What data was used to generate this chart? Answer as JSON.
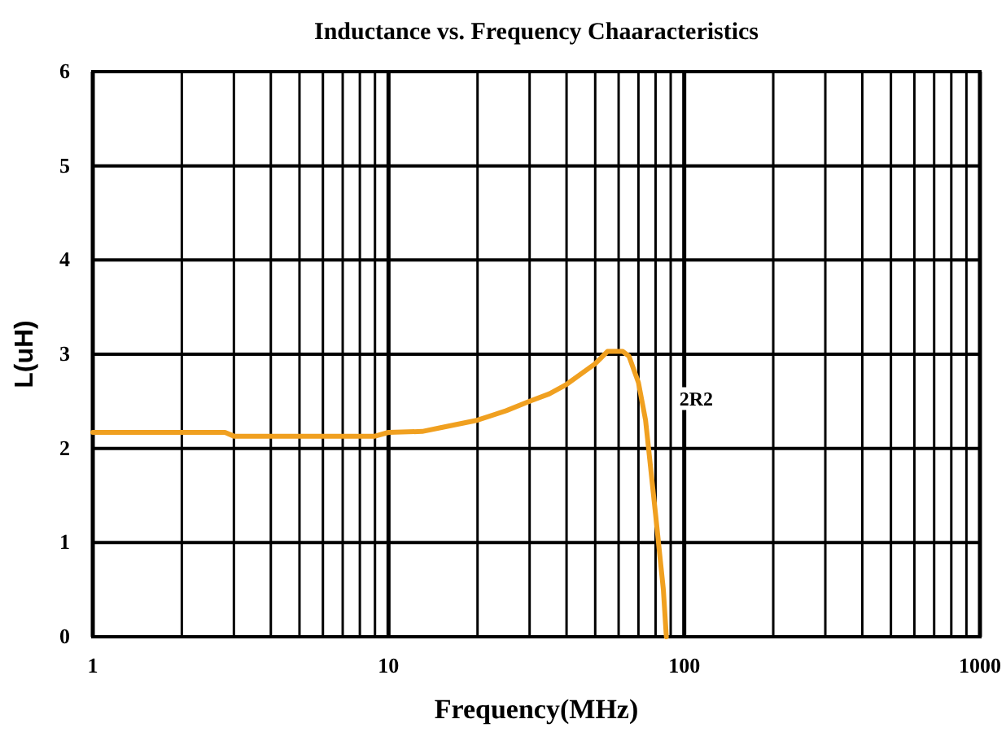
{
  "chart_data": {
    "type": "line",
    "title": "Inductance vs. Frequency Chaaracteristics",
    "xlabel": "Frequency(MHz)",
    "ylabel": "L(uH)",
    "log": "x",
    "grid": true,
    "xlim": [
      1,
      1000
    ],
    "ylim": [
      0,
      6
    ],
    "xticks": [
      1,
      {
        "value": 2,
        "label": null
      },
      {
        "value": 3,
        "label": null
      },
      {
        "value": 4,
        "label": null
      },
      {
        "value": 5,
        "label": null
      },
      {
        "value": 6,
        "label": null
      },
      {
        "value": 7,
        "label": null
      },
      {
        "value": 8,
        "label": null
      },
      {
        "value": 9,
        "label": null
      },
      10,
      {
        "value": 20,
        "label": null
      },
      {
        "value": 30,
        "label": null
      },
      {
        "value": 40,
        "label": null
      },
      {
        "value": 50,
        "label": null
      },
      {
        "value": 60,
        "label": null
      },
      {
        "value": 70,
        "label": null
      },
      {
        "value": 80,
        "label": null
      },
      {
        "value": 90,
        "label": null
      },
      100,
      {
        "value": 200,
        "label": null
      },
      {
        "value": 300,
        "label": null
      },
      {
        "value": 400,
        "label": null
      },
      {
        "value": 500,
        "label": null
      },
      {
        "value": 600,
        "label": null
      },
      {
        "value": 700,
        "label": null
      },
      {
        "value": 800,
        "label": null
      },
      {
        "value": 900,
        "label": null
      },
      1000
    ],
    "yticks": [
      0,
      1,
      2,
      3,
      4,
      5,
      6
    ],
    "series": [
      {
        "name": "2R2",
        "color": "#f0a020",
        "x": [
          1,
          2,
          2.8,
          3,
          5,
          9,
          10,
          13,
          15,
          20,
          25,
          30,
          35,
          40,
          50,
          55,
          62,
          65,
          70,
          74,
          80,
          85,
          87
        ],
        "values": [
          2.17,
          2.17,
          2.17,
          2.13,
          2.13,
          2.13,
          2.17,
          2.18,
          2.22,
          2.3,
          2.4,
          2.5,
          2.58,
          2.68,
          2.9,
          3.03,
          3.03,
          2.98,
          2.7,
          2.3,
          1.3,
          0.5,
          0
        ]
      }
    ]
  }
}
